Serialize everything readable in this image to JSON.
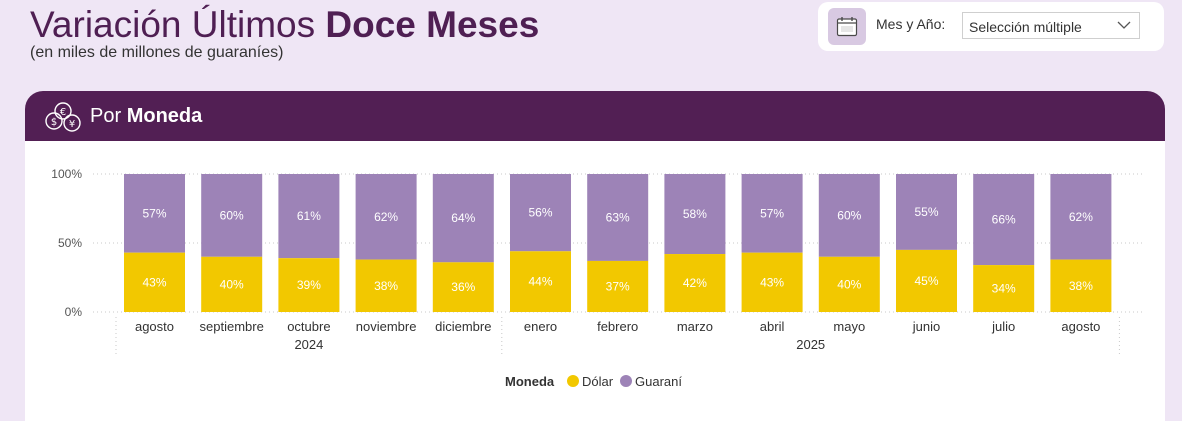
{
  "header": {
    "title_regular": "Variación Últimos ",
    "title_bold": "Doce Meses",
    "subtitle": "(en miles de millones de guaraníes)"
  },
  "filter": {
    "icon": "calendar-icon",
    "label": "Mes y Año:",
    "value": "Selección múltiple"
  },
  "card": {
    "icon": "coins-icon",
    "title_regular": "Por ",
    "title_bold": "Moneda"
  },
  "colors": {
    "dolar": "#f2c800",
    "guarani": "#9d83b7",
    "header_bg": "#521f54"
  },
  "chart_data": {
    "type": "bar",
    "stacked": "percent",
    "categories": [
      "agosto",
      "septiembre",
      "octubre",
      "noviembre",
      "diciembre",
      "enero",
      "febrero",
      "marzo",
      "abril",
      "mayo",
      "junio",
      "julio",
      "agosto"
    ],
    "year_groups": [
      {
        "label": "2024",
        "start": 0,
        "end": 4
      },
      {
        "label": "2025",
        "start": 5,
        "end": 12
      }
    ],
    "series": [
      {
        "name": "Dólar",
        "values": [
          43,
          40,
          39,
          38,
          36,
          44,
          37,
          42,
          43,
          40,
          45,
          34,
          38
        ],
        "labels": [
          "43%",
          "40%",
          "39%",
          "38%",
          "36%",
          "44%",
          "37%",
          "42%",
          "43%",
          "40%",
          "45%",
          "34%",
          "38%"
        ]
      },
      {
        "name": "Guaraní",
        "values": [
          57,
          60,
          61,
          62,
          64,
          56,
          63,
          58,
          57,
          60,
          55,
          66,
          62
        ],
        "labels": [
          "57%",
          "60%",
          "61%",
          "62%",
          "64%",
          "56%",
          "63%",
          "58%",
          "57%",
          "60%",
          "55%",
          "66%",
          "62%"
        ]
      }
    ],
    "ylim": [
      0,
      100
    ],
    "yticks": [
      "0%",
      "50%",
      "100%"
    ],
    "legend": {
      "title": "Moneda",
      "position": "bottom"
    },
    "grid": true
  }
}
